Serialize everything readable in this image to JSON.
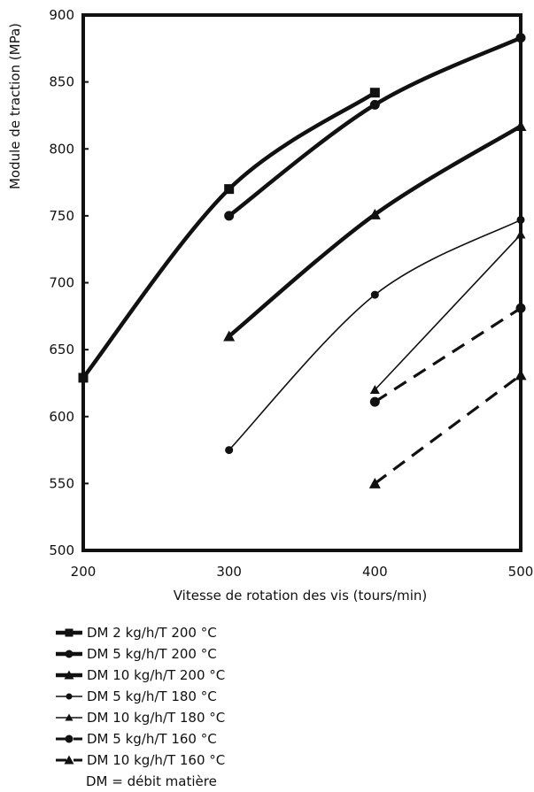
{
  "chart_data": {
    "type": "line",
    "title": "",
    "xlabel": "Vitesse de rotation des vis (tours/min)",
    "ylabel": "Module de traction (MPa)",
    "xlim": [
      200,
      500
    ],
    "ylim": [
      500,
      900
    ],
    "x_ticks": [
      "200",
      "300",
      "400",
      "500"
    ],
    "y_ticks": [
      "500",
      "550",
      "600",
      "650",
      "700",
      "750",
      "800",
      "850",
      "900"
    ],
    "grid": false,
    "legend_position": "below",
    "series": [
      {
        "name": "DM 2 kg/h/T 200 °C",
        "marker": "square",
        "style": "thick",
        "x": [
          200,
          300,
          400
        ],
        "y": [
          629,
          770,
          842
        ]
      },
      {
        "name": "DM 5 kg/h/T 200 °C",
        "marker": "circle",
        "style": "thick",
        "x": [
          300,
          400,
          500
        ],
        "y": [
          750,
          833,
          883
        ]
      },
      {
        "name": "DM 10 kg/h/T 200 °C",
        "marker": "triangle",
        "style": "thick",
        "x": [
          300,
          400,
          500
        ],
        "y": [
          660,
          751,
          817
        ]
      },
      {
        "name": "DM 5 kg/h/T 180 °C",
        "marker": "circle",
        "style": "thin",
        "x": [
          300,
          400,
          500
        ],
        "y": [
          575,
          691,
          747
        ]
      },
      {
        "name": "DM 10 kg/h/T 180 °C",
        "marker": "triangle",
        "style": "thin",
        "x": [
          400,
          500
        ],
        "y": [
          620,
          736
        ]
      },
      {
        "name": "DM 5 kg/h/T 160 °C",
        "marker": "circle",
        "style": "dashed",
        "x": [
          400,
          500
        ],
        "y": [
          611,
          681
        ]
      },
      {
        "name": "DM 10 kg/h/T 160 °C",
        "marker": "triangle",
        "style": "dashed",
        "x": [
          400,
          500
        ],
        "y": [
          550,
          631
        ]
      }
    ],
    "note": "DM = débit matière"
  }
}
